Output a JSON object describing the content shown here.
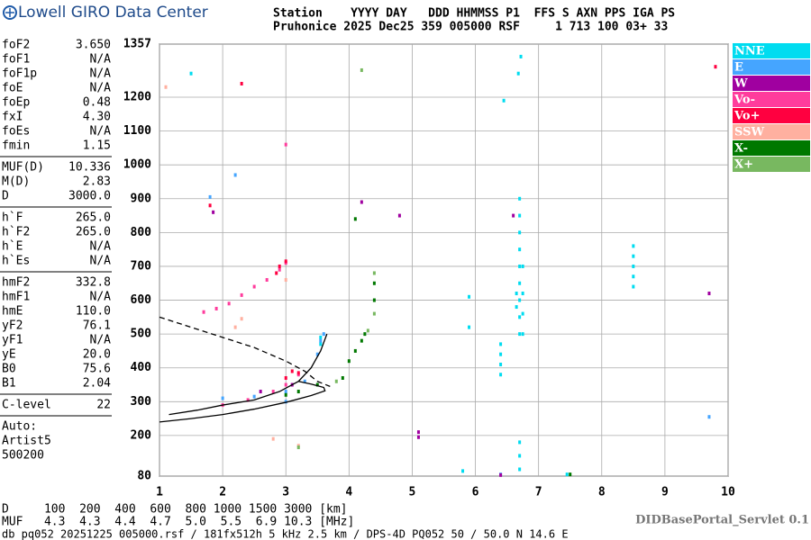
{
  "header": {
    "brand": "Lowell GIRO Data Center",
    "columns": "Station    YYYY DAY   DDD HHMMSS P1  FFS S AXN PPS IGA PS",
    "values": "Pruhonice 2025 Dec25 359 005000 RSF     1 713 100 03+ 33"
  },
  "params": [
    [
      [
        "foF2",
        "3.650"
      ],
      [
        "foF1",
        "N/A"
      ],
      [
        "foF1p",
        "N/A"
      ],
      [
        "foE",
        "N/A"
      ],
      [
        "foEp",
        "0.48"
      ],
      [
        "fxI",
        "4.30"
      ],
      [
        "foEs",
        "N/A"
      ],
      [
        "fmin",
        "1.15"
      ]
    ],
    [
      [
        "MUF(D)",
        "10.336"
      ],
      [
        "M(D)",
        "2.83"
      ],
      [
        "D",
        "3000.0"
      ]
    ],
    [
      [
        "h`F",
        "265.0"
      ],
      [
        "h`F2",
        "265.0"
      ],
      [
        "h`E",
        "N/A"
      ],
      [
        "h`Es",
        "N/A"
      ]
    ],
    [
      [
        "hmF2",
        "332.8"
      ],
      [
        "hmF1",
        "N/A"
      ],
      [
        "hmE",
        "110.0"
      ],
      [
        "yF2",
        "76.1"
      ],
      [
        "yF1",
        "N/A"
      ],
      [
        "yE",
        "20.0"
      ],
      [
        "B0",
        "75.6"
      ],
      [
        "B1",
        "2.04"
      ]
    ],
    [
      [
        "C-level",
        "22"
      ]
    ]
  ],
  "autoscaling": [
    "Auto:",
    "Artist5",
    "500200"
  ],
  "chart_data": {
    "type": "scatter",
    "xlim": [
      1,
      10
    ],
    "xticks": [
      1,
      2,
      3,
      4,
      5,
      6,
      7,
      8,
      9,
      10
    ],
    "ylim": [
      80,
      1357
    ],
    "yticks": [
      80,
      200,
      300,
      400,
      500,
      600,
      700,
      800,
      900,
      1000,
      1100,
      1200,
      1357
    ],
    "grid": true,
    "series": [
      {
        "name": "NNE",
        "color": "#00dcf0",
        "x": [
          6.7,
          6.7,
          6.7,
          6.7,
          6.7,
          6.7,
          6.7,
          6.7,
          6.7,
          6.7,
          6.7,
          6.7,
          6.75,
          6.75,
          6.75,
          6.75,
          6.65,
          6.65,
          6.72,
          6.68,
          8.5,
          8.5,
          8.5,
          8.5,
          8.5,
          6.4,
          6.4,
          6.4,
          6.4,
          5.9,
          5.9,
          3.55,
          3.55,
          5.8,
          7.45,
          1.5,
          6.45
        ],
        "y": [
          100,
          140,
          180,
          500,
          550,
          600,
          650,
          700,
          750,
          800,
          850,
          900,
          500,
          560,
          620,
          700,
          580,
          620,
          1320,
          1270,
          760,
          730,
          700,
          670,
          640,
          470,
          440,
          410,
          380,
          520,
          610,
          490,
          470,
          95,
          85,
          1270,
          1190
        ]
      },
      {
        "name": "E",
        "color": "#45a5ff",
        "x": [
          2.0,
          2.5,
          3.0,
          3.3,
          3.5,
          3.55,
          3.6,
          1.8,
          2.2,
          3.0,
          6.4,
          9.7
        ],
        "y": [
          310,
          315,
          330,
          360,
          440,
          480,
          500,
          905,
          970,
          300,
          85,
          255
        ]
      },
      {
        "name": "W",
        "color": "#a000a0",
        "x": [
          2.6,
          3.1,
          4.2,
          4.8,
          1.85,
          9.7,
          5.1,
          5.1,
          6.4,
          6.6
        ],
        "y": [
          330,
          350,
          890,
          850,
          860,
          620,
          210,
          195,
          83,
          850
        ]
      },
      {
        "name": "Vo-",
        "color": "#ff3c9c",
        "x": [
          1.7,
          1.9,
          2.1,
          2.3,
          2.5,
          2.7,
          2.9,
          3.0,
          2.0,
          2.4,
          2.8,
          3.0,
          3.2,
          3.0
        ],
        "y": [
          565,
          575,
          590,
          615,
          640,
          660,
          690,
          710,
          290,
          305,
          330,
          350,
          380,
          1060
        ]
      },
      {
        "name": "Vo+",
        "color": "#ff0040",
        "x": [
          2.9,
          3.0,
          2.85,
          3.1,
          3.2,
          2.3,
          9.8,
          1.8,
          3.0
        ],
        "y": [
          700,
          715,
          680,
          390,
          385,
          1240,
          1290,
          880,
          370
        ]
      },
      {
        "name": "SSW",
        "color": "#ffb0a0",
        "x": [
          2.8,
          3.2,
          1.1,
          2.3,
          2.2,
          3.0
        ],
        "y": [
          190,
          170,
          1230,
          545,
          520,
          660
        ]
      },
      {
        "name": "X-",
        "color": "#007800",
        "x": [
          3.9,
          4.0,
          4.1,
          4.2,
          4.25,
          4.1,
          4.4,
          4.4,
          3.0,
          3.2,
          3.5,
          7.5
        ],
        "y": [
          370,
          420,
          450,
          480,
          500,
          840,
          650,
          600,
          320,
          330,
          350,
          85
        ]
      },
      {
        "name": "X+",
        "color": "#78b860",
        "x": [
          4.4,
          4.4,
          3.8,
          4.3,
          4.2,
          3.2
        ],
        "y": [
          680,
          560,
          360,
          510,
          1280,
          165
        ]
      }
    ],
    "lines": [
      {
        "dashed": false,
        "x": [
          1.0,
          1.5,
          2.0,
          2.5,
          3.0,
          3.4,
          3.62,
          3.6,
          3.4,
          3.2
        ],
        "y": [
          240,
          250,
          262,
          278,
          298,
          318,
          332,
          342,
          352,
          360
        ]
      },
      {
        "dashed": false,
        "x": [
          1.15,
          1.6,
          2.0,
          2.5,
          2.9,
          3.2,
          3.4,
          3.55,
          3.65
        ],
        "y": [
          262,
          275,
          290,
          305,
          330,
          360,
          400,
          450,
          500
        ]
      },
      {
        "dashed": true,
        "x": [
          1.0,
          1.5,
          2.0,
          2.5,
          3.0,
          3.3,
          3.5,
          3.7
        ],
        "y": [
          550,
          520,
          490,
          460,
          420,
          390,
          360,
          345
        ]
      }
    ]
  },
  "footer": {
    "distance": "D     100  200  400  600  800 1000 1500 3000 [km]",
    "muf": "MUF   4.3  4.3  4.4  4.7  5.0  5.5  6.9 10.3 [MHz]",
    "servlet": "DIDBasePortal_Servlet 0.1",
    "file": "db pq052 20251225 005000.rsf / 181fx512h 5 kHz 2.5 km / DPS-4D PQ052 50 / 50.0 N 14.6 E"
  }
}
